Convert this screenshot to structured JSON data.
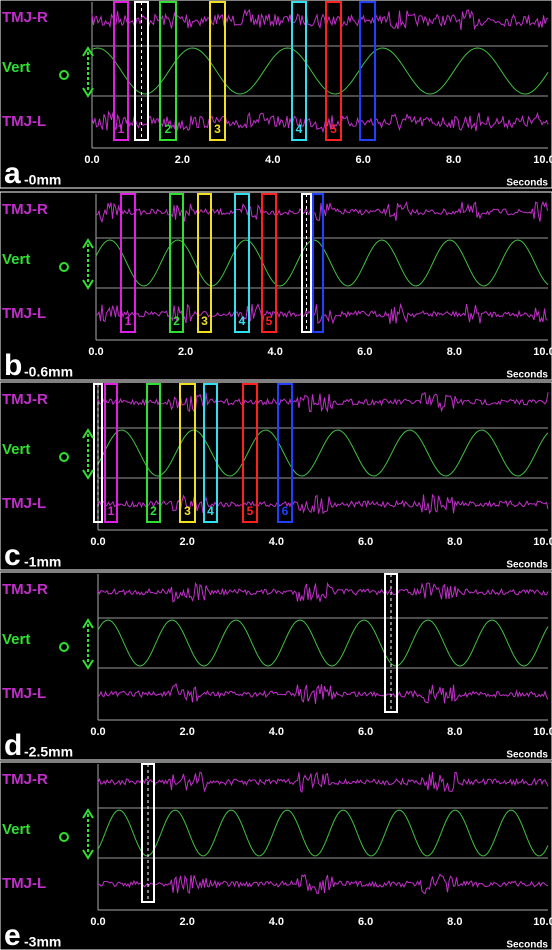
{
  "panels": [
    {
      "label": "a",
      "depth": "-0mm",
      "channels": [
        "TMJ-R",
        "Vert",
        "TMJ-L"
      ],
      "ticks": [
        "0.0",
        "2.0",
        "4.0",
        "6.0",
        "8.0",
        "10.0"
      ],
      "axis_label": "Seconds",
      "markers": [
        "1",
        "2",
        "3",
        "4",
        "5"
      ]
    },
    {
      "label": "b",
      "depth": "-0.6mm",
      "channels": [
        "TMJ-R",
        "Vert",
        "TMJ-L"
      ],
      "ticks": [
        "0.0",
        "2.0",
        "4.0",
        "6.0",
        "8.0",
        "10.0"
      ],
      "axis_label": "Seconds",
      "markers": [
        "1",
        "2",
        "3",
        "4",
        "5"
      ]
    },
    {
      "label": "c",
      "depth": "-1mm",
      "channels": [
        "TMJ-R",
        "Vert",
        "TMJ-L"
      ],
      "ticks": [
        "0.0",
        "2.0",
        "4.0",
        "6.0",
        "8.0",
        "10.0"
      ],
      "axis_label": "Seconds",
      "markers": [
        "1",
        "2",
        "3",
        "4",
        "5",
        "6"
      ]
    },
    {
      "label": "d",
      "depth": "-2.5mm",
      "channels": [
        "TMJ-R",
        "Vert",
        "TMJ-L"
      ],
      "ticks": [
        "0.0",
        "2.0",
        "4.0",
        "6.0",
        "8.0",
        "10.0"
      ],
      "axis_label": "Seconds",
      "markers": []
    },
    {
      "label": "e",
      "depth": "-3mm",
      "channels": [
        "TMJ-R",
        "Vert",
        "TMJ-L"
      ],
      "ticks": [
        "0.0",
        "2.0",
        "4.0",
        "6.0",
        "8.0",
        "10.0"
      ],
      "axis_label": "Seconds",
      "markers": []
    }
  ]
}
